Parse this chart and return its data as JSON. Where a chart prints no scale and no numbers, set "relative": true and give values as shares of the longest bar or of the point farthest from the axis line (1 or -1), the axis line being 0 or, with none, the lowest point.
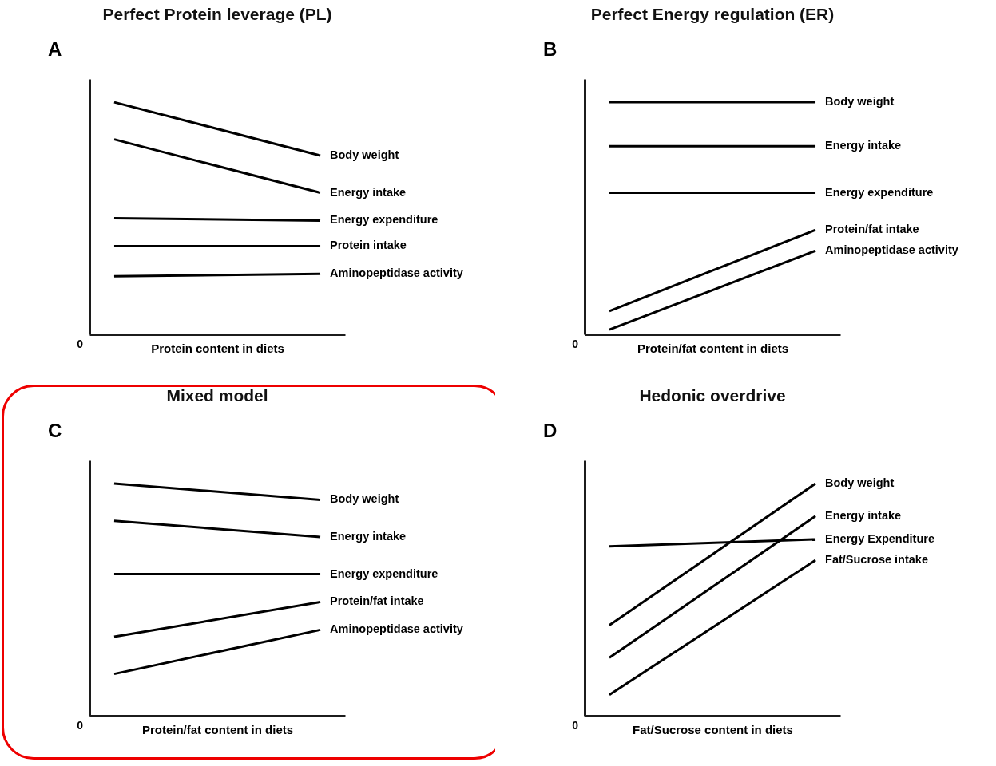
{
  "chart_data": [
    {
      "type": "line",
      "title": "Perfect Protein leverage (PL)",
      "xlabel": "Protein content in diets",
      "annotations": [
        "A",
        "0"
      ],
      "relative": true,
      "categories": [
        null,
        null
      ],
      "legend": false,
      "series": [
        {
          "name": "Body weight",
          "color": "#000000",
          "values": [
            1,
            0.77
          ]
        },
        {
          "name": "Energy intake",
          "color": "#000000",
          "values": [
            0.84,
            0.61
          ]
        },
        {
          "name": "Energy expenditure",
          "color": "#000000",
          "values": [
            0.5,
            0.49
          ]
        },
        {
          "name": "Protein intake",
          "color": "#000000",
          "values": [
            0.38,
            0.38
          ]
        },
        {
          "name": "Aminopeptidase activity",
          "color": "#000000",
          "values": [
            0.25,
            0.26
          ]
        }
      ]
    },
    {
      "type": "line",
      "title": "Perfect Energy regulation (ER)",
      "xlabel": "Protein/fat content in diets",
      "annotations": [
        "B",
        "0"
      ],
      "relative": true,
      "categories": [
        null,
        null
      ],
      "legend": false,
      "series": [
        {
          "name": "Body weight",
          "color": "#000000",
          "values": [
            1,
            1
          ]
        },
        {
          "name": "Energy intake",
          "color": "#000000",
          "values": [
            0.81,
            0.81
          ]
        },
        {
          "name": "Energy expenditure",
          "color": "#000000",
          "values": [
            0.61,
            0.61
          ]
        },
        {
          "name": "Protein/fat intake",
          "color": "#000000",
          "values": [
            0.1,
            0.45
          ]
        },
        {
          "name": "Aminopeptidase activity",
          "color": "#000000",
          "values": [
            0.02,
            0.36
          ]
        }
      ]
    },
    {
      "type": "line",
      "title": "Mixed model",
      "xlabel": "Protein/fat content in diets",
      "annotations": [
        "C",
        "0"
      ],
      "relative": true,
      "categories": [
        null,
        null
      ],
      "legend": false,
      "series": [
        {
          "name": "Body weight",
          "color": "#000000",
          "values": [
            1,
            0.93
          ]
        },
        {
          "name": "Energy intake",
          "color": "#000000",
          "values": [
            0.84,
            0.77
          ]
        },
        {
          "name": "Energy expenditure",
          "color": "#000000",
          "values": [
            0.61,
            0.61
          ]
        },
        {
          "name": "Protein/fat intake",
          "color": "#000000",
          "values": [
            0.34,
            0.49
          ]
        },
        {
          "name": "Aminopeptidase activity",
          "color": "#000000",
          "values": [
            0.18,
            0.37
          ]
        }
      ]
    },
    {
      "type": "line",
      "title": "Hedonic overdrive",
      "xlabel": "Fat/Sucrose content in diets",
      "annotations": [
        "D",
        "0"
      ],
      "relative": true,
      "categories": [
        null,
        null
      ],
      "legend": false,
      "series": [
        {
          "name": "Body weight",
          "color": "#000000",
          "values": [
            0.39,
            1
          ]
        },
        {
          "name": "Energy intake",
          "color": "#000000",
          "values": [
            0.25,
            0.86
          ]
        },
        {
          "name": "Energy Expenditure",
          "color": "#000000",
          "values": [
            0.73,
            0.76
          ]
        },
        {
          "name": "Fat/Sucrose intake",
          "color": "#000000",
          "values": [
            0.09,
            0.67
          ]
        }
      ]
    }
  ]
}
